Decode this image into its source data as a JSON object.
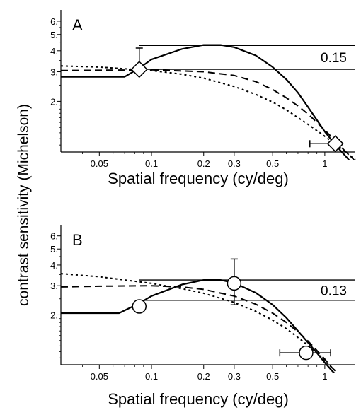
{
  "chart_data": {
    "type": "line",
    "ylabel": "contrast sensitivity (Michelson)",
    "xscale": "log",
    "yscale": "log",
    "panels": [
      {
        "label": "A",
        "xlabel": "Spatial frequency (cy/deg)",
        "xlim": [
          0.03,
          1.5
        ],
        "ylim": [
          1.0,
          7.0
        ],
        "xticks": [
          0.05,
          0.1,
          0.2,
          0.3,
          0.5,
          1
        ],
        "xtick_labels": [
          "0.05",
          "0.1",
          "0.2",
          "0.3",
          "0.5",
          "1"
        ],
        "yticks": [
          2,
          3,
          4,
          5,
          6
        ],
        "ytick_labels": [
          "2.",
          "3.",
          "4.",
          "5.",
          "6."
        ],
        "series": [
          {
            "style": "solid",
            "x": [
              0.03,
              0.07,
              0.085,
              0.1,
              0.15,
              0.2,
              0.25,
              0.3,
              0.4,
              0.5,
              0.6,
              0.7,
              0.8,
              0.9,
              1.0,
              1.1,
              1.2,
              1.3,
              1.4
            ],
            "y": [
              2.8,
              2.8,
              3.15,
              3.55,
              4.1,
              4.33,
              4.33,
              4.2,
              3.75,
              3.2,
              2.7,
              2.25,
              1.85,
              1.55,
              1.32,
              1.17,
              1.05,
              0.96,
              0.88
            ]
          },
          {
            "style": "dashed",
            "x": [
              0.03,
              0.1,
              0.2,
              0.3,
              0.4,
              0.5,
              0.6,
              0.7,
              0.8,
              0.9,
              1.0,
              1.1,
              1.2,
              1.3,
              1.4,
              1.5
            ],
            "y": [
              3.05,
              3.08,
              3.0,
              2.85,
              2.62,
              2.35,
              2.1,
              1.88,
              1.68,
              1.5,
              1.35,
              1.22,
              1.11,
              1.02,
              0.95,
              0.88
            ]
          },
          {
            "style": "dotted",
            "x": [
              0.03,
              0.05,
              0.1,
              0.15,
              0.2,
              0.3,
              0.4,
              0.5,
              0.6,
              0.7,
              0.8,
              0.9,
              1.0,
              1.1,
              1.2,
              1.3,
              1.4,
              1.5
            ],
            "y": [
              3.25,
              3.2,
              3.05,
              2.9,
              2.75,
              2.45,
              2.2,
              1.98,
              1.78,
              1.6,
              1.46,
              1.34,
              1.24,
              1.15,
              1.08,
              1.01,
              0.95,
              0.9
            ]
          }
        ],
        "points": [
          {
            "marker": "diamond",
            "x": 0.085,
            "y": 3.1,
            "yerr_low": 3.1,
            "yerr_high": 4.15
          },
          {
            "marker": "diamond",
            "x": 1.15,
            "y": 1.12,
            "xerr_low": 0.82,
            "xerr_high": 1.15
          }
        ],
        "reference_lines": [
          4.3,
          3.1
        ],
        "annotation": "0.15"
      },
      {
        "label": "B",
        "xlabel": "Spatial frequency (cy/deg)",
        "xlim": [
          0.03,
          1.5
        ],
        "ylim": [
          1.0,
          7.0
        ],
        "xticks": [
          0.05,
          0.1,
          0.2,
          0.3,
          0.5,
          1
        ],
        "xtick_labels": [
          "0.05",
          "0.1",
          "0.2",
          "0.3",
          "0.5",
          "1"
        ],
        "yticks": [
          2,
          3,
          4,
          5,
          6
        ],
        "ytick_labels": [
          "2.",
          "3.",
          "4.",
          "5.",
          "6."
        ],
        "series": [
          {
            "style": "solid",
            "x": [
              0.03,
              0.065,
              0.085,
              0.1,
              0.15,
              0.2,
              0.25,
              0.3,
              0.4,
              0.5,
              0.6,
              0.7,
              0.8,
              0.9,
              1.0,
              1.1,
              1.2
            ],
            "y": [
              2.05,
              2.05,
              2.35,
              2.6,
              3.05,
              3.25,
              3.25,
              3.12,
              2.72,
              2.3,
              1.92,
              1.6,
              1.36,
              1.18,
              1.03,
              0.92,
              0.84
            ]
          },
          {
            "style": "dashed",
            "x": [
              0.03,
              0.05,
              0.1,
              0.15,
              0.2,
              0.3,
              0.4,
              0.5,
              0.6,
              0.7,
              0.8,
              0.9,
              1.0,
              1.1,
              1.2
            ],
            "y": [
              2.95,
              2.98,
              3.0,
              2.95,
              2.85,
              2.6,
              2.32,
              2.05,
              1.8,
              1.58,
              1.39,
              1.22,
              1.08,
              0.96,
              0.88
            ]
          },
          {
            "style": "dotted",
            "x": [
              0.03,
              0.05,
              0.1,
              0.15,
              0.2,
              0.3,
              0.4,
              0.5,
              0.6,
              0.7,
              0.8,
              0.9,
              1.0,
              1.1,
              1.2
            ],
            "y": [
              3.55,
              3.4,
              3.1,
              2.88,
              2.7,
              2.38,
              2.1,
              1.86,
              1.65,
              1.46,
              1.31,
              1.18,
              1.06,
              0.96,
              0.88
            ]
          }
        ],
        "points": [
          {
            "marker": "circle",
            "x": 0.085,
            "y": 2.25
          },
          {
            "marker": "circle",
            "x": 0.3,
            "y": 3.1,
            "yerr_low": 2.3,
            "yerr_high": 4.35
          },
          {
            "marker": "circle",
            "x": 0.78,
            "y": 1.18,
            "xerr_low": 0.55,
            "xerr_high": 1.08
          }
        ],
        "reference_lines": [
          3.25,
          2.45
        ],
        "annotation": "0.13"
      }
    ]
  }
}
